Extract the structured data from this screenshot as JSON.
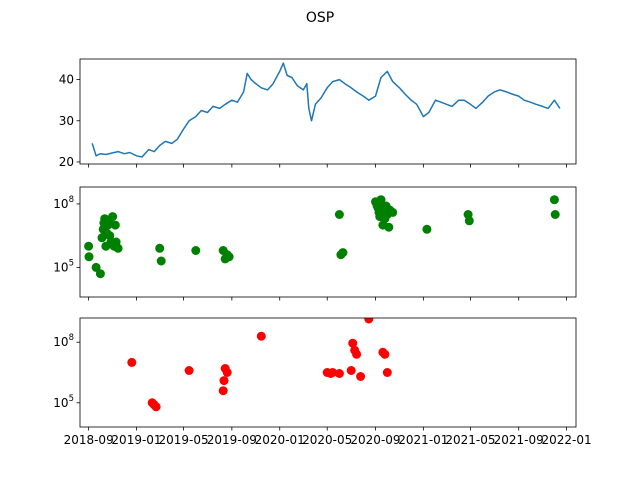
{
  "chart_data": {
    "title": "OSP",
    "type": "subplots",
    "x_axis": {
      "kind": "date",
      "range": [
        "2018-08-10",
        "2022-01-25"
      ],
      "tick_labels": [
        "2018-09",
        "2019-01",
        "2019-05",
        "2019-09",
        "2020-01",
        "2020-05",
        "2020-09",
        "2021-01",
        "2021-05",
        "2021-09",
        "2022-01"
      ],
      "tick_dates": [
        "2018-09-01",
        "2019-01-01",
        "2019-05-01",
        "2019-09-01",
        "2020-01-01",
        "2020-05-01",
        "2020-09-01",
        "2021-01-01",
        "2021-05-01",
        "2021-09-01",
        "2022-01-01"
      ],
      "labels_on": "bottom"
    },
    "panels": [
      {
        "type": "line",
        "color": "#1f77b4",
        "ylim": [
          19.5,
          45
        ],
        "yticks": [
          20,
          30,
          40
        ],
        "ytick_labels": [
          "20",
          "30",
          "40"
        ],
        "yscale": "linear",
        "x": [
          "2018-09-10",
          "2018-09-20",
          "2018-10-01",
          "2018-10-15",
          "2018-11-01",
          "2018-11-15",
          "2018-12-01",
          "2018-12-15",
          "2019-01-01",
          "2019-01-15",
          "2019-02-01",
          "2019-02-15",
          "2019-03-01",
          "2019-03-15",
          "2019-04-01",
          "2019-04-15",
          "2019-05-01",
          "2019-05-15",
          "2019-06-01",
          "2019-06-15",
          "2019-07-01",
          "2019-07-15",
          "2019-08-01",
          "2019-08-15",
          "2019-09-01",
          "2019-09-15",
          "2019-10-01",
          "2019-10-10",
          "2019-10-20",
          "2019-11-01",
          "2019-11-15",
          "2019-12-01",
          "2019-12-15",
          "2020-01-01",
          "2020-01-10",
          "2020-01-20",
          "2020-02-01",
          "2020-02-15",
          "2020-03-01",
          "2020-03-10",
          "2020-03-15",
          "2020-03-22",
          "2020-04-01",
          "2020-04-15",
          "2020-05-01",
          "2020-05-15",
          "2020-06-01",
          "2020-06-15",
          "2020-07-01",
          "2020-07-15",
          "2020-08-01",
          "2020-08-15",
          "2020-09-01",
          "2020-09-15",
          "2020-10-01",
          "2020-10-15",
          "2020-11-01",
          "2020-11-15",
          "2020-12-01",
          "2020-12-15",
          "2021-01-01",
          "2021-01-15",
          "2021-02-01",
          "2021-02-15",
          "2021-03-01",
          "2021-03-15",
          "2021-04-01",
          "2021-04-15",
          "2021-05-01",
          "2021-05-15",
          "2021-06-01",
          "2021-06-15",
          "2021-07-01",
          "2021-07-15",
          "2021-08-01",
          "2021-08-15",
          "2021-09-01",
          "2021-09-15",
          "2021-10-01",
          "2021-10-15",
          "2021-11-01",
          "2021-11-15",
          "2021-12-01",
          "2021-12-15"
        ],
        "y": [
          24.5,
          21.5,
          22,
          21.8,
          22.2,
          22.5,
          22,
          22.3,
          21.5,
          21.2,
          23,
          22.5,
          24,
          25,
          24.5,
          25.5,
          28,
          30,
          31,
          32.5,
          32,
          33.5,
          33,
          34,
          35,
          34.5,
          37,
          41.5,
          40,
          39,
          38,
          37.5,
          39,
          42,
          44,
          41,
          40.5,
          38.5,
          37.5,
          39,
          33,
          30,
          34,
          35.5,
          38,
          39.5,
          40,
          39,
          38,
          37,
          36,
          35,
          36,
          40.5,
          42,
          39.5,
          38,
          36.5,
          35,
          34,
          31,
          32,
          35,
          34.5,
          34,
          33.5,
          35,
          35,
          34,
          33,
          34.5,
          36,
          37,
          37.5,
          37,
          36.5,
          36,
          35,
          34.5,
          34,
          33.5,
          33,
          35,
          33
        ]
      },
      {
        "type": "scatter",
        "color": "#008000",
        "yscale": "log",
        "ylim_exp": [
          3.6,
          8.8
        ],
        "yticks_exp": [
          5,
          8
        ],
        "ytick_labels": [
          "10^5",
          "10^8"
        ],
        "x": [
          "2018-09-01",
          "2018-09-02",
          "2018-09-20",
          "2018-10-01",
          "2018-10-05",
          "2018-10-08",
          "2018-10-10",
          "2018-10-12",
          "2018-10-15",
          "2018-10-18",
          "2018-10-20",
          "2018-10-22",
          "2018-10-25",
          "2018-10-28",
          "2018-11-01",
          "2018-11-05",
          "2018-11-08",
          "2018-11-10",
          "2018-11-15",
          "2019-03-01",
          "2019-03-05",
          "2019-06-01",
          "2019-08-10",
          "2019-08-15",
          "2019-08-20",
          "2019-08-25",
          "2020-06-01",
          "2020-06-05",
          "2020-06-10",
          "2020-09-01",
          "2020-09-05",
          "2020-09-08",
          "2020-09-10",
          "2020-09-12",
          "2020-09-15",
          "2020-09-18",
          "2020-09-20",
          "2020-09-22",
          "2020-09-25",
          "2020-09-28",
          "2020-10-01",
          "2020-10-05",
          "2020-10-08",
          "2020-10-15",
          "2021-01-10",
          "2021-04-25",
          "2021-04-28",
          "2021-12-01",
          "2021-12-03"
        ],
        "y_exp": [
          6.0,
          5.5,
          5.0,
          4.7,
          6.4,
          6.8,
          7.1,
          7.3,
          6.0,
          6.6,
          7.0,
          7.2,
          6.5,
          6.2,
          7.4,
          6.0,
          7.0,
          6.2,
          5.9,
          5.9,
          5.3,
          5.8,
          5.8,
          5.4,
          5.6,
          5.5,
          7.5,
          5.6,
          5.7,
          8.1,
          7.9,
          7.8,
          7.6,
          7.4,
          8.2,
          7.8,
          7.0,
          7.6,
          7.3,
          7.9,
          7.5,
          6.9,
          7.7,
          7.6,
          6.8,
          7.5,
          7.2,
          8.2,
          7.5
        ]
      },
      {
        "type": "scatter",
        "color": "#ff0000",
        "yscale": "log",
        "ylim_exp": [
          3.8,
          9.2
        ],
        "yticks_exp": [
          5,
          8
        ],
        "ytick_labels": [
          "10^5",
          "10^8"
        ],
        "x": [
          "2018-12-20",
          "2019-02-10",
          "2019-02-15",
          "2019-02-20",
          "2019-05-15",
          "2019-08-10",
          "2019-08-12",
          "2019-08-15",
          "2019-08-20",
          "2019-11-15",
          "2020-05-01",
          "2020-05-10",
          "2020-05-15",
          "2020-06-01",
          "2020-07-01",
          "2020-07-05",
          "2020-07-10",
          "2020-07-15",
          "2020-07-25",
          "2020-08-15",
          "2020-09-20",
          "2020-09-25",
          "2020-10-01"
        ],
        "y_exp": [
          7.0,
          5.0,
          4.9,
          4.8,
          6.6,
          5.6,
          6.1,
          6.7,
          6.5,
          8.3,
          6.5,
          6.45,
          6.5,
          6.45,
          6.6,
          7.95,
          7.6,
          7.4,
          6.3,
          9.15,
          7.5,
          7.4,
          6.5
        ]
      }
    ]
  }
}
